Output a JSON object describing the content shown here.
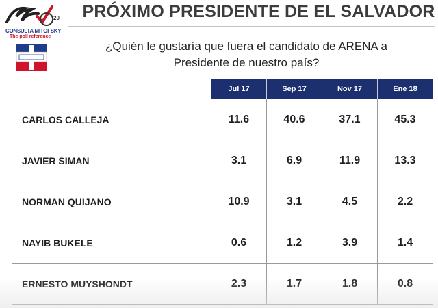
{
  "logo": {
    "name": "CONSULTA MITOFSKY",
    "tagline": "The poll reference",
    "anniversary": "20"
  },
  "page_title": "PRÓXIMO PRESIDENTE DE EL SALVADOR",
  "question_line1": "¿Quién le gustaría que fuera el candidato de ARENA a",
  "question_line2": "Presidente de nuestro país?",
  "party_logo_text": "ARENA",
  "chart_data": {
    "type": "table",
    "columns": [
      "Jul 17",
      "Sep 17",
      "Nov 17",
      "Ene 18"
    ],
    "rows": [
      {
        "candidate": "CARLOS CALLEJA",
        "values": [
          "11.6",
          "40.6",
          "37.1",
          "45.3"
        ]
      },
      {
        "candidate": "JAVIER SIMAN",
        "values": [
          "3.1",
          "6.9",
          "11.9",
          "13.3"
        ]
      },
      {
        "candidate": "NORMAN QUIJANO",
        "values": [
          "10.9",
          "3.1",
          "4.5",
          "2.2"
        ]
      },
      {
        "candidate": "NAYIB BUKELE",
        "values": [
          "0.6",
          "1.2",
          "3.9",
          "1.4"
        ]
      },
      {
        "candidate": "ERNESTO MUYSHONDT",
        "values": [
          "2.3",
          "1.7",
          "1.8",
          "0.8"
        ]
      }
    ]
  },
  "colors": {
    "header_bg": "#1c2f6e",
    "header_text": "#ffffff",
    "title_text": "#3c3c3c",
    "brand_red": "#d0142b",
    "brand_blue": "#1f3b8a"
  }
}
